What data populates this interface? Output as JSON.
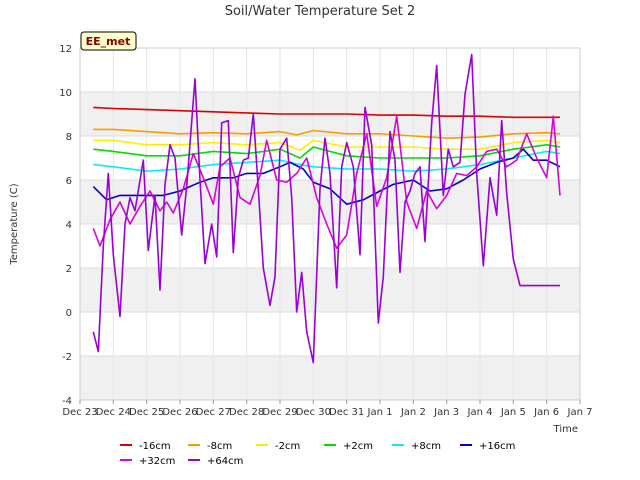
{
  "chart_data": {
    "type": "line",
    "title": "Soil/Water Temperature Set 2",
    "xlabel": "Time",
    "ylabel": "Temperature (C)",
    "badge": "EE_met",
    "ylim": [
      -4,
      12
    ],
    "yticks": [
      -4,
      -2,
      0,
      2,
      4,
      6,
      8,
      10,
      12
    ],
    "xlim": [
      0,
      15
    ],
    "x_tick_labels": [
      "Dec 23",
      "Dec 24",
      "Dec 25",
      "Dec 26",
      "Dec 27",
      "Dec 28",
      "Dec 29",
      "Dec 30",
      "Dec 31",
      "Jan 1",
      "Jan 2",
      "Jan 3",
      "Jan 4",
      "Jan 5",
      "Jan 6",
      "Jan 7"
    ],
    "x_unit_note_days_from_first_tick": true,
    "grid": true,
    "legend_placement": "bottom",
    "series": [
      {
        "name": "-16cm",
        "color": "#dd0000",
        "x": [
          0.4,
          1,
          2,
          3,
          4,
          5,
          6,
          7,
          8,
          9,
          10,
          11,
          12,
          13,
          14,
          14.4
        ],
        "y": [
          9.3,
          9.25,
          9.2,
          9.15,
          9.1,
          9.05,
          9.0,
          9.0,
          9.0,
          8.95,
          8.95,
          8.9,
          8.9,
          8.85,
          8.85,
          8.85
        ]
      },
      {
        "name": "-8cm",
        "color": "#ff9900",
        "x": [
          0.4,
          1,
          2,
          3,
          4,
          5,
          6,
          6.5,
          7,
          8,
          9,
          10,
          11,
          12,
          13,
          14,
          14.4
        ],
        "y": [
          8.3,
          8.3,
          8.2,
          8.1,
          8.15,
          8.1,
          8.2,
          8.05,
          8.25,
          8.1,
          8.1,
          8.0,
          7.9,
          7.95,
          8.1,
          8.15,
          8.1
        ]
      },
      {
        "name": "-2cm",
        "color": "#ffee00",
        "x": [
          0.4,
          1,
          2,
          3,
          4,
          5,
          6,
          6.6,
          7,
          8,
          9,
          10,
          11,
          12,
          13,
          14,
          14.4
        ],
        "y": [
          7.8,
          7.8,
          7.6,
          7.6,
          7.7,
          7.6,
          7.7,
          7.35,
          7.8,
          7.5,
          7.5,
          7.5,
          7.4,
          7.4,
          7.7,
          7.8,
          7.7
        ]
      },
      {
        "name": "+2cm",
        "color": "#00dd00",
        "x": [
          0.4,
          1,
          2,
          3,
          4,
          5,
          6,
          6.6,
          7,
          8,
          9,
          10,
          11,
          12,
          13,
          14,
          14.4
        ],
        "y": [
          7.4,
          7.3,
          7.1,
          7.1,
          7.3,
          7.2,
          7.4,
          7.0,
          7.5,
          7.1,
          7.0,
          7.0,
          7.0,
          7.1,
          7.4,
          7.6,
          7.5
        ]
      },
      {
        "name": "+8cm",
        "color": "#00eeff",
        "x": [
          0.4,
          1,
          2,
          3,
          4,
          5,
          6,
          6.6,
          7,
          8,
          9,
          10,
          11,
          12,
          13,
          14,
          14.4
        ],
        "y": [
          6.7,
          6.6,
          6.4,
          6.5,
          6.7,
          6.8,
          6.9,
          6.7,
          6.6,
          6.5,
          6.5,
          6.4,
          6.5,
          6.7,
          7.0,
          7.3,
          7.2
        ]
      },
      {
        "name": "+16cm",
        "color": "#0000cc",
        "x": [
          0.4,
          0.8,
          1.2,
          2,
          2.5,
          3,
          3.6,
          4,
          4.6,
          5,
          5.5,
          6,
          6.3,
          6.7,
          7,
          7.5,
          8,
          8.5,
          9,
          9.4,
          10,
          10.5,
          11,
          11.5,
          12,
          12.5,
          13,
          13.3,
          13.6,
          14,
          14.4
        ],
        "y": [
          5.7,
          5.1,
          5.3,
          5.3,
          5.3,
          5.5,
          5.9,
          6.1,
          6.1,
          6.3,
          6.3,
          6.6,
          6.8,
          6.5,
          5.9,
          5.6,
          4.9,
          5.1,
          5.5,
          5.8,
          6.0,
          5.5,
          5.6,
          6.0,
          6.5,
          6.8,
          7.0,
          7.4,
          6.9,
          6.9,
          6.6
        ]
      },
      {
        "name": "+32cm",
        "color": "#dd00dd",
        "x": [
          0.4,
          0.6,
          0.9,
          1.2,
          1.5,
          1.8,
          2.1,
          2.4,
          2.6,
          2.8,
          3.1,
          3.4,
          3.7,
          4.0,
          4.2,
          4.5,
          4.8,
          5.1,
          5.4,
          5.6,
          5.9,
          6.2,
          6.5,
          6.8,
          7.1,
          7.4,
          7.7,
          8.0,
          8.3,
          8.6,
          8.9,
          9.2,
          9.5,
          9.8,
          10.1,
          10.4,
          10.7,
          11.0,
          11.3,
          11.6,
          11.9,
          12.2,
          12.5,
          12.8,
          13.1,
          13.4,
          13.7,
          14.0,
          14.2,
          14.4
        ],
        "y": [
          3.8,
          3.0,
          4.2,
          5.0,
          4.0,
          4.8,
          5.5,
          4.6,
          5.0,
          4.5,
          5.6,
          7.2,
          6.1,
          4.9,
          6.6,
          7.0,
          5.2,
          4.9,
          6.2,
          7.8,
          6.0,
          5.9,
          6.3,
          7.0,
          5.2,
          4.0,
          2.9,
          3.5,
          6.3,
          8.1,
          4.8,
          6.1,
          8.9,
          5.0,
          3.8,
          5.5,
          4.7,
          5.3,
          6.3,
          6.2,
          6.6,
          7.3,
          7.4,
          6.6,
          6.9,
          8.1,
          7.0,
          6.1,
          8.9,
          5.3
        ]
      },
      {
        "name": "+64cm",
        "color": "#9900dd",
        "x": [
          0.4,
          0.55,
          0.7,
          0.85,
          1.0,
          1.2,
          1.35,
          1.5,
          1.65,
          1.9,
          2.05,
          2.25,
          2.4,
          2.55,
          2.7,
          2.85,
          3.05,
          3.2,
          3.45,
          3.6,
          3.75,
          3.95,
          4.1,
          4.25,
          4.45,
          4.6,
          4.75,
          4.9,
          5.05,
          5.2,
          5.35,
          5.5,
          5.7,
          5.85,
          6.0,
          6.2,
          6.35,
          6.5,
          6.65,
          6.8,
          7.0,
          7.2,
          7.35,
          7.5,
          7.7,
          7.85,
          8.0,
          8.2,
          8.4,
          8.55,
          8.75,
          8.95,
          9.1,
          9.3,
          9.45,
          9.6,
          9.75,
          9.9,
          10.05,
          10.2,
          10.35,
          10.55,
          10.7,
          10.9,
          11.05,
          11.2,
          11.4,
          11.55,
          11.75,
          11.9,
          12.1,
          12.3,
          12.5,
          12.65,
          12.8,
          13.0,
          13.2,
          13.35,
          13.5,
          13.65,
          13.8,
          13.95,
          14.1,
          14.25,
          14.4
        ],
        "y": [
          -0.9,
          -1.8,
          3.0,
          6.3,
          2.6,
          -0.2,
          4.0,
          5.2,
          4.6,
          6.9,
          2.8,
          5.3,
          1.0,
          5.8,
          7.6,
          7.0,
          3.5,
          5.7,
          10.6,
          6.0,
          2.2,
          4.0,
          2.5,
          8.6,
          8.7,
          2.7,
          6.1,
          6.9,
          7.0,
          9.0,
          5.6,
          2.0,
          0.3,
          1.6,
          7.4,
          7.9,
          5.2,
          0.0,
          1.8,
          -0.9,
          -2.3,
          5.6,
          7.9,
          6.3,
          1.1,
          6.6,
          7.7,
          6.6,
          2.6,
          9.3,
          7.6,
          -0.5,
          1.6,
          8.2,
          6.9,
          1.8,
          5.0,
          5.5,
          6.3,
          6.6,
          3.2,
          8.6,
          11.2,
          5.3,
          7.4,
          6.6,
          6.8,
          9.9,
          11.7,
          6.3,
          2.1,
          6.1,
          4.4,
          8.7,
          5.4,
          2.4,
          1.2,
          1.2,
          1.2,
          1.2,
          1.2,
          1.2,
          1.2,
          1.2,
          1.2
        ]
      }
    ]
  }
}
